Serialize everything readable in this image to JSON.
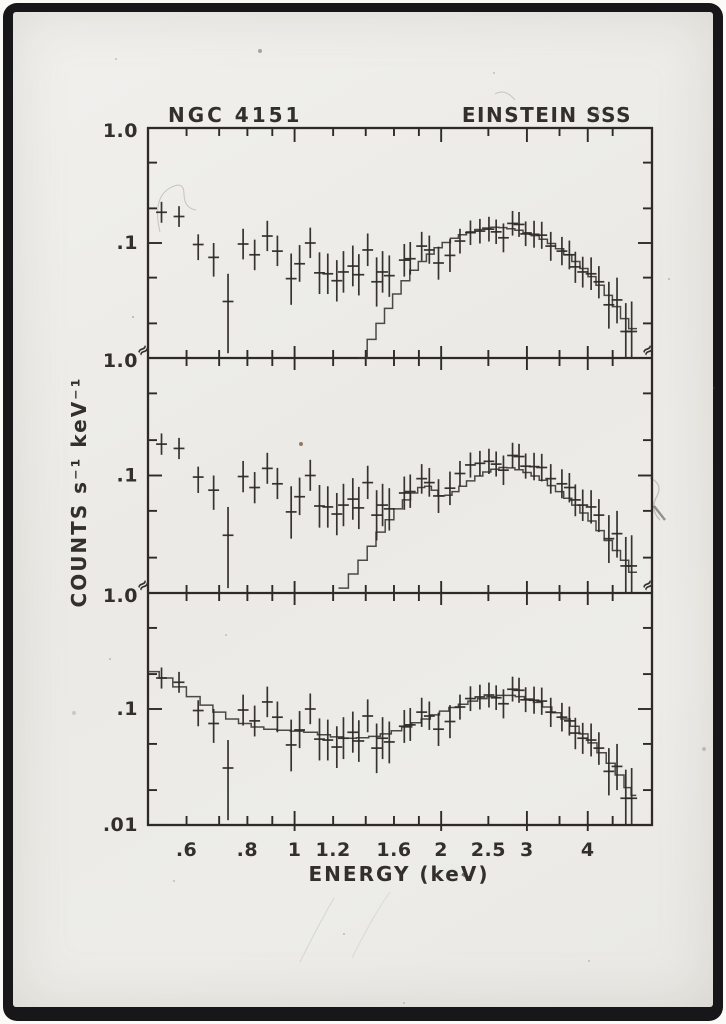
{
  "figure": {
    "title_left": "NGC 4151",
    "title_right": "EINSTEIN SSS",
    "x_axis_label": "ENERGY (keV)",
    "y_axis_label": "COUNTS s⁻¹ keV⁻¹",
    "break_symbol": "≈",
    "ink_color": "#2e2b27",
    "paper_color": "#ecebe7",
    "frame_color": "#17171a"
  },
  "chart_data": {
    "type": "scatter",
    "title": "NGC 4151 / EINSTEIN SSS solid state spectrometer spectrum, three model fits",
    "xlabel": "ENERGY (keV)",
    "ylabel": "COUNTS s⁻¹ keV⁻¹",
    "x_scale": "log",
    "y_scale": "log",
    "xlim": [
      0.5,
      5.42
    ],
    "ylim_per_panel": [
      0.01,
      1.0
    ],
    "grid": false,
    "legend": "none",
    "x_ticks": [
      {
        "v": 0.6,
        "label": ".6"
      },
      {
        "v": 0.7
      },
      {
        "v": 0.8,
        "label": ".8"
      },
      {
        "v": 0.9
      },
      {
        "v": 1,
        "label": "1",
        "major": true
      },
      {
        "v": 1.2,
        "label": "1.2"
      },
      {
        "v": 1.4
      },
      {
        "v": 1.6,
        "label": "1.6"
      },
      {
        "v": 1.8
      },
      {
        "v": 2,
        "label": "2",
        "major": true
      },
      {
        "v": 2.5,
        "label": "2.5"
      },
      {
        "v": 3,
        "label": "3",
        "major": true
      },
      {
        "v": 3.5
      },
      {
        "v": 4,
        "label": "4",
        "major": true
      },
      {
        "v": 4.5
      }
    ],
    "y_ticks": [
      {
        "v": 0.5
      },
      {
        "v": 0.2
      },
      {
        "v": 0.1,
        "major": true
      },
      {
        "v": 0.05
      },
      {
        "v": 0.02
      }
    ],
    "y_tick_labels": [
      {
        "panel": 0,
        "value": 1.0,
        "label": "1.0"
      },
      {
        "panel": 0,
        "value": 0.1,
        "label": ".1"
      },
      {
        "panel": 1,
        "value": 1.0,
        "label": "1.0"
      },
      {
        "panel": 1,
        "value": 0.1,
        "label": ".1"
      },
      {
        "panel": 2,
        "value": 1.0,
        "label": "1.0"
      },
      {
        "panel": 2,
        "value": 0.1,
        "label": ".1"
      },
      {
        "panel": 2,
        "value": 0.01,
        "label": ".01"
      }
    ],
    "x_err_frac": 0.026,
    "data_points": [
      [
        0.533,
        0.185,
        0.15,
        0.228
      ],
      [
        0.579,
        0.17,
        0.138,
        0.209
      ],
      [
        0.634,
        0.097,
        0.071,
        0.119
      ],
      [
        0.682,
        0.075,
        0.051,
        0.1
      ],
      [
        0.73,
        0.031,
        0.011,
        0.054
      ],
      [
        0.784,
        0.098,
        0.072,
        0.133
      ],
      [
        0.828,
        0.079,
        0.058,
        0.107
      ],
      [
        0.879,
        0.115,
        0.085,
        0.156
      ],
      [
        0.922,
        0.085,
        0.063,
        0.116
      ],
      [
        0.984,
        0.049,
        0.029,
        0.081
      ],
      [
        1.024,
        0.066,
        0.046,
        0.096
      ],
      [
        1.077,
        0.1,
        0.074,
        0.136
      ],
      [
        1.125,
        0.055,
        0.036,
        0.083
      ],
      [
        1.17,
        0.054,
        0.036,
        0.081
      ],
      [
        1.221,
        0.047,
        0.031,
        0.071
      ],
      [
        1.26,
        0.056,
        0.037,
        0.085
      ],
      [
        1.317,
        0.063,
        0.042,
        0.095
      ],
      [
        1.355,
        0.053,
        0.035,
        0.08
      ],
      [
        1.413,
        0.087,
        0.063,
        0.121
      ],
      [
        1.474,
        0.046,
        0.028,
        0.075
      ],
      [
        1.516,
        0.056,
        0.037,
        0.085
      ],
      [
        1.565,
        0.052,
        0.034,
        0.078
      ],
      [
        1.68,
        0.071,
        0.051,
        0.098
      ],
      [
        1.728,
        0.073,
        0.053,
        0.102
      ],
      [
        1.824,
        0.094,
        0.07,
        0.125
      ],
      [
        1.891,
        0.087,
        0.066,
        0.116
      ],
      [
        1.975,
        0.067,
        0.048,
        0.093
      ],
      [
        2.085,
        0.078,
        0.056,
        0.108
      ],
      [
        2.186,
        0.104,
        0.081,
        0.133
      ],
      [
        2.297,
        0.123,
        0.096,
        0.157
      ],
      [
        2.402,
        0.127,
        0.099,
        0.162
      ],
      [
        2.507,
        0.132,
        0.103,
        0.169
      ],
      [
        2.594,
        0.125,
        0.098,
        0.16
      ],
      [
        2.685,
        0.111,
        0.083,
        0.148
      ],
      [
        2.803,
        0.148,
        0.116,
        0.19
      ],
      [
        2.89,
        0.145,
        0.113,
        0.186
      ],
      [
        2.982,
        0.12,
        0.094,
        0.154
      ],
      [
        3.103,
        0.119,
        0.091,
        0.156
      ],
      [
        3.218,
        0.117,
        0.089,
        0.153
      ],
      [
        3.358,
        0.094,
        0.07,
        0.125
      ],
      [
        3.54,
        0.085,
        0.064,
        0.113
      ],
      [
        3.667,
        0.079,
        0.059,
        0.105
      ],
      [
        3.772,
        0.062,
        0.045,
        0.084
      ],
      [
        3.906,
        0.056,
        0.041,
        0.076
      ],
      [
        4.064,
        0.054,
        0.039,
        0.075
      ],
      [
        4.216,
        0.046,
        0.033,
        0.063
      ],
      [
        4.42,
        0.029,
        0.018,
        0.046
      ],
      [
        4.594,
        0.032,
        0.02,
        0.05
      ],
      [
        4.788,
        0.017,
        0.01,
        0.03
      ],
      [
        4.923,
        0.017,
        0.01,
        0.031
      ]
    ],
    "panels": [
      {
        "name": "panel_1",
        "model": [
          [
            1.38,
            0.01
          ],
          [
            1.44,
            0.0145
          ],
          [
            1.5,
            0.02
          ],
          [
            1.56,
            0.027
          ],
          [
            1.62,
            0.036
          ],
          [
            1.69,
            0.047
          ],
          [
            1.76,
            0.058
          ],
          [
            1.83,
            0.069
          ],
          [
            1.9,
            0.08
          ],
          [
            1.97,
            0.091
          ],
          [
            2.05,
            0.101
          ],
          [
            2.13,
            0.11
          ],
          [
            2.21,
            0.118
          ],
          [
            2.3,
            0.125
          ],
          [
            2.39,
            0.131
          ],
          [
            2.48,
            0.135
          ],
          [
            2.58,
            0.137
          ],
          [
            2.68,
            0.136
          ],
          [
            2.78,
            0.133
          ],
          [
            2.89,
            0.129
          ],
          [
            3.0,
            0.123
          ],
          [
            3.12,
            0.116
          ],
          [
            3.24,
            0.108
          ],
          [
            3.37,
            0.099
          ],
          [
            3.5,
            0.089
          ],
          [
            3.64,
            0.079
          ],
          [
            3.78,
            0.069
          ],
          [
            3.93,
            0.06
          ],
          [
            4.08,
            0.051
          ],
          [
            4.24,
            0.043
          ],
          [
            4.41,
            0.035
          ],
          [
            4.58,
            0.028
          ],
          [
            4.76,
            0.022
          ],
          [
            4.95,
            0.018
          ]
        ]
      },
      {
        "name": "panel_2",
        "model": [
          [
            1.26,
            0.011
          ],
          [
            1.32,
            0.0145
          ],
          [
            1.38,
            0.019
          ],
          [
            1.44,
            0.025
          ],
          [
            1.5,
            0.033
          ],
          [
            1.57,
            0.042
          ],
          [
            1.63,
            0.052
          ],
          [
            1.7,
            0.062
          ],
          [
            1.76,
            0.071
          ],
          [
            1.82,
            0.079
          ],
          [
            1.88,
            0.081
          ],
          [
            1.94,
            0.075
          ],
          [
            2.0,
            0.067
          ],
          [
            2.07,
            0.068
          ],
          [
            2.14,
            0.073
          ],
          [
            2.21,
            0.081
          ],
          [
            2.3,
            0.09
          ],
          [
            2.39,
            0.099
          ],
          [
            2.48,
            0.107
          ],
          [
            2.58,
            0.113
          ],
          [
            2.68,
            0.117
          ],
          [
            2.78,
            0.116
          ],
          [
            2.89,
            0.112
          ],
          [
            3.0,
            0.106
          ],
          [
            3.12,
            0.099
          ],
          [
            3.24,
            0.091
          ],
          [
            3.37,
            0.082
          ],
          [
            3.5,
            0.073
          ],
          [
            3.64,
            0.064
          ],
          [
            3.78,
            0.056
          ],
          [
            3.93,
            0.048
          ],
          [
            4.08,
            0.041
          ],
          [
            4.24,
            0.034
          ],
          [
            4.41,
            0.028
          ],
          [
            4.58,
            0.023
          ],
          [
            4.76,
            0.019
          ],
          [
            4.95,
            0.015
          ]
        ]
      },
      {
        "name": "panel_3",
        "model": [
          [
            0.51,
            0.21
          ],
          [
            0.545,
            0.185
          ],
          [
            0.58,
            0.155
          ],
          [
            0.62,
            0.128
          ],
          [
            0.66,
            0.108
          ],
          [
            0.7,
            0.094
          ],
          [
            0.745,
            0.082
          ],
          [
            0.79,
            0.075
          ],
          [
            0.84,
            0.07
          ],
          [
            0.89,
            0.067
          ],
          [
            0.95,
            0.0655
          ],
          [
            1.01,
            0.0645
          ],
          [
            1.08,
            0.063
          ],
          [
            1.15,
            0.06
          ],
          [
            1.22,
            0.0575
          ],
          [
            1.3,
            0.056
          ],
          [
            1.38,
            0.0565
          ],
          [
            1.46,
            0.058
          ],
          [
            1.54,
            0.061
          ],
          [
            1.62,
            0.065
          ],
          [
            1.7,
            0.07
          ],
          [
            1.78,
            0.076
          ],
          [
            1.86,
            0.082
          ],
          [
            1.94,
            0.089
          ],
          [
            2.03,
            0.096
          ],
          [
            2.12,
            0.103
          ],
          [
            2.22,
            0.11
          ],
          [
            2.32,
            0.117
          ],
          [
            2.43,
            0.123
          ],
          [
            2.54,
            0.128
          ],
          [
            2.66,
            0.131
          ],
          [
            2.78,
            0.131
          ],
          [
            2.9,
            0.128
          ],
          [
            3.03,
            0.122
          ],
          [
            3.16,
            0.114
          ],
          [
            3.3,
            0.104
          ],
          [
            3.45,
            0.093
          ],
          [
            3.6,
            0.082
          ],
          [
            3.76,
            0.071
          ],
          [
            3.92,
            0.061
          ],
          [
            4.09,
            0.051
          ],
          [
            4.27,
            0.042
          ],
          [
            4.46,
            0.034
          ],
          [
            4.65,
            0.027
          ],
          [
            4.85,
            0.021
          ],
          [
            4.97,
            0.018
          ]
        ]
      }
    ]
  }
}
